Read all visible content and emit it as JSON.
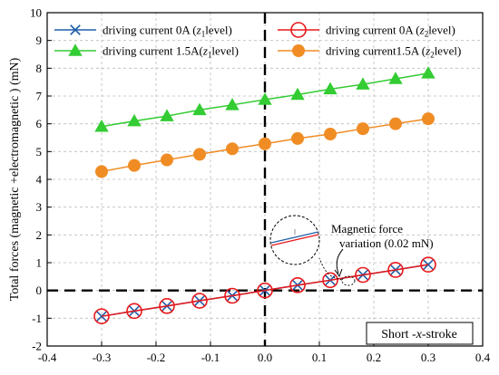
{
  "chart_data": {
    "type": "line",
    "title": "",
    "xlabel": "",
    "ylabel": "Total forces (magnetic +electromagnetic ) (mN)",
    "xlim": [
      -0.4,
      0.4
    ],
    "ylim": [
      -2,
      10
    ],
    "x_ticks": [
      "-0.4",
      "-0.3",
      "-0.2",
      "-0.1",
      "0.0",
      "0.1",
      "0.2",
      "0.3",
      "0.4"
    ],
    "y_ticks": [
      "-2",
      "-1",
      "0",
      "1",
      "2",
      "3",
      "4",
      "5",
      "6",
      "7",
      "8",
      "9",
      "10"
    ],
    "grid": true,
    "legend_placement": "top",
    "x": [
      -0.3,
      -0.24,
      -0.18,
      -0.12,
      -0.06,
      0.0,
      0.06,
      0.12,
      0.18,
      0.24,
      0.3
    ],
    "series": [
      {
        "name": "driving current 0A  (z₁level)",
        "marker": "x",
        "color": "#1f5fa8",
        "values": [
          -0.93,
          -0.74,
          -0.56,
          -0.37,
          -0.19,
          0.0,
          0.19,
          0.37,
          0.56,
          0.74,
          0.93
        ]
      },
      {
        "name": "driving current 0A  (z₂level)",
        "marker": "open-circle",
        "color": "#e8191c",
        "values": [
          -0.93,
          -0.74,
          -0.56,
          -0.37,
          -0.19,
          0.0,
          0.19,
          0.37,
          0.56,
          0.74,
          0.93
        ]
      },
      {
        "name": "driving current 1.5A(z₁level)",
        "marker": "triangle",
        "color": "#33cc33",
        "values": [
          5.9,
          6.1,
          6.28,
          6.5,
          6.68,
          6.87,
          7.05,
          7.25,
          7.42,
          7.62,
          7.82
        ]
      },
      {
        "name": "driving current1.5A (z₂level)",
        "marker": "filled-circle",
        "color": "#f08c24",
        "values": [
          4.28,
          4.5,
          4.7,
          4.9,
          5.1,
          5.28,
          5.47,
          5.63,
          5.82,
          6.0,
          6.18
        ]
      }
    ],
    "annotations": {
      "magnified_text_line1": "Magnetic force",
      "magnified_text_line2": "variation (0.02 mN)",
      "region_label": "Short -x-stroke"
    }
  },
  "legend": [
    {
      "pre": "driving current 0A  (",
      "var": "z",
      "sub": "1",
      "post": "level)"
    },
    {
      "pre": "driving current 0A  (",
      "var": "z",
      "sub": "2",
      "post": "level)"
    },
    {
      "pre": "driving current 1.5A(",
      "var": "z",
      "sub": "1",
      "post": "level)"
    },
    {
      "pre": "driving current1.5A (",
      "var": "z",
      "sub": "2",
      "post": "level)"
    }
  ],
  "colors": {
    "blue": "#1f5fa8",
    "red": "#e8191c",
    "green": "#33cc33",
    "orange": "#f08c24",
    "grid": "#bdbdbd"
  }
}
